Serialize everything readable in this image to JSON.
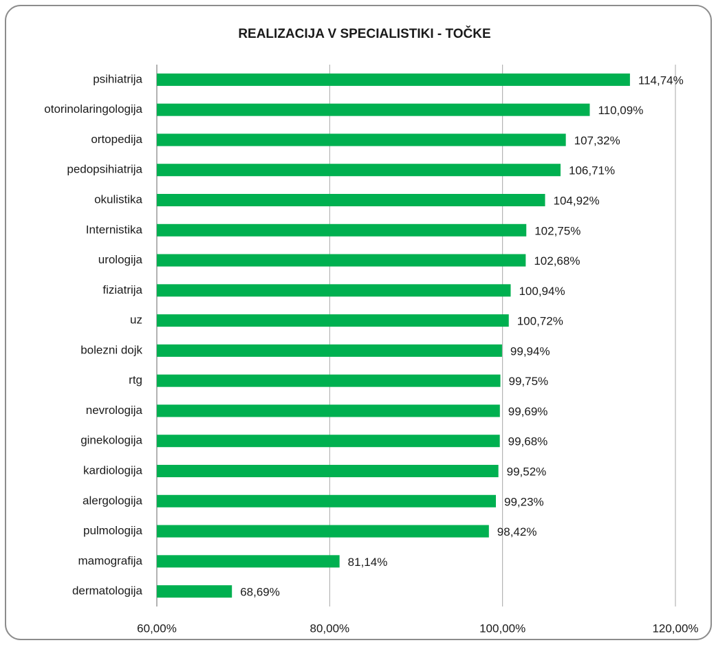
{
  "chart_data": {
    "type": "bar",
    "orientation": "horizontal",
    "title": "REALIZACIJA V SPECIALISTIKI - TOČKE",
    "categories": [
      "psihiatrija",
      "otorinolaringologija",
      "ortopedija",
      "pedopsihiatrija",
      "okulistika",
      "Internistika",
      "urologija",
      "fiziatrija",
      "uz",
      "bolezni dojk",
      "rtg",
      "nevrologija",
      "ginekologija",
      "kardiologija",
      "alergologija",
      "pulmologija",
      "mamografija",
      "dermatologija"
    ],
    "values": [
      114.74,
      110.09,
      107.32,
      106.71,
      104.92,
      102.75,
      102.68,
      100.94,
      100.72,
      99.94,
      99.75,
      99.69,
      99.68,
      99.52,
      99.23,
      98.42,
      81.14,
      68.69
    ],
    "value_labels": [
      "114,74%",
      "110,09%",
      "107,32%",
      "106,71%",
      "104,92%",
      "102,75%",
      "102,68%",
      "100,94%",
      "100,72%",
      "99,94%",
      "99,75%",
      "99,69%",
      "99,68%",
      "99,52%",
      "99,23%",
      "98,42%",
      "81,14%",
      "68,69%"
    ],
    "color": "#00b050",
    "xlim": [
      60,
      120
    ],
    "xticks": [
      {
        "value": 60,
        "label": "60,00%"
      },
      {
        "value": 80,
        "label": "80,00%"
      },
      {
        "value": 100,
        "label": "100,00%"
      },
      {
        "value": 120,
        "label": "120,00%"
      }
    ],
    "grid": true
  }
}
